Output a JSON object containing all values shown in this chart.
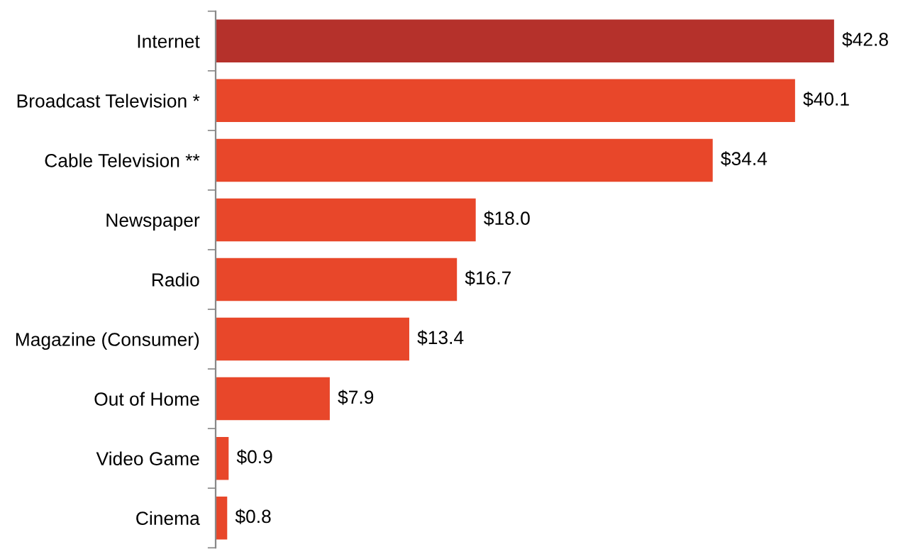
{
  "chart_data": {
    "type": "bar",
    "orientation": "horizontal",
    "categories": [
      "Internet",
      "Broadcast Television *",
      "Cable Television **",
      "Newspaper",
      "Radio",
      "Magazine (Consumer)",
      "Out of Home",
      "Video Game",
      "Cinema"
    ],
    "values": [
      42.8,
      40.1,
      34.4,
      18.0,
      16.7,
      13.4,
      7.9,
      0.9,
      0.8
    ],
    "value_labels": [
      "$42.8",
      "$40.1",
      "$34.4",
      "$18.0",
      "$16.7",
      "$13.4",
      "$7.9",
      "$0.9",
      "$0.8"
    ],
    "colors": [
      "#b5312b",
      "#e8472a",
      "#e8472a",
      "#e8472a",
      "#e8472a",
      "#e8472a",
      "#e8472a",
      "#e8472a",
      "#e8472a"
    ],
    "grid": false,
    "legend": false
  }
}
